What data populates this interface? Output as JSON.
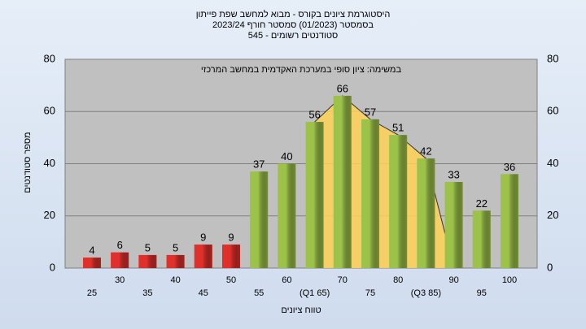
{
  "chart_data": {
    "type": "bar",
    "title": "היסטוגרמת ציונים בקורס - מבוא למחשב שפת פייתון",
    "subtitle": "בסמסטר (01/2023) סמסטר חורף 2023/24",
    "subtitle2": "סטודנטים רשומים - 545",
    "annotation": "במשימה: ציון סופי במערכת האקדמית במחשב המרכזי",
    "y_label": "מספר סטודנטים",
    "x_label": "טווח ציונים",
    "categories": [
      "25",
      "30",
      "35",
      "40",
      "45",
      "50",
      "55",
      "60",
      "(Q1 65)",
      "70",
      "75",
      "80",
      "(Q3 85)",
      "90",
      "95",
      "100"
    ],
    "values": [
      4,
      6,
      5,
      5,
      9,
      9,
      37,
      40,
      56,
      66,
      57,
      51,
      42,
      33,
      22,
      36
    ],
    "colors": [
      "#e0302c",
      "#e0302c",
      "#e0302c",
      "#e0302c",
      "#e0302c",
      "#e0302c",
      "#9cc24a",
      "#9cc24a",
      "#9cc24a",
      "#9cc24a",
      "#9cc24a",
      "#9cc24a",
      "#9cc24a",
      "#9cc24a",
      "#9cc24a",
      "#9cc24a"
    ],
    "area": {
      "color": "#ffd257",
      "values": [
        null,
        null,
        null,
        null,
        null,
        null,
        null,
        null,
        56,
        66,
        57,
        51,
        42,
        0,
        null,
        null
      ]
    },
    "ylim": [
      0,
      80
    ],
    "yticks": [
      0,
      20,
      40,
      60,
      80
    ],
    "grid": true
  }
}
